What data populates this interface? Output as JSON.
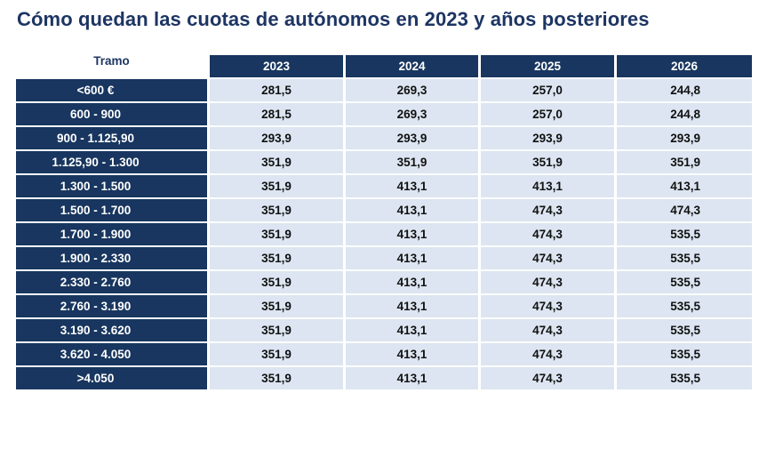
{
  "title": "Cómo quedan las cuotas de autónomos en 2023 y años posteriores",
  "table": {
    "corner_label": "Tramo",
    "years": [
      "2023",
      "2024",
      "2025",
      "2026"
    ],
    "rows": [
      {
        "tramo": "<600 €",
        "values": [
          "281,5",
          "269,3",
          "257,0",
          "244,8"
        ]
      },
      {
        "tramo": "600 - 900",
        "values": [
          "281,5",
          "269,3",
          "257,0",
          "244,8"
        ]
      },
      {
        "tramo": "900 - 1.125,90",
        "values": [
          "293,9",
          "293,9",
          "293,9",
          "293,9"
        ]
      },
      {
        "tramo": "1.125,90 - 1.300",
        "values": [
          "351,9",
          "351,9",
          "351,9",
          "351,9"
        ]
      },
      {
        "tramo": "1.300 - 1.500",
        "values": [
          "351,9",
          "413,1",
          "413,1",
          "413,1"
        ]
      },
      {
        "tramo": "1.500 - 1.700",
        "values": [
          "351,9",
          "413,1",
          "474,3",
          "474,3"
        ]
      },
      {
        "tramo": "1.700 - 1.900",
        "values": [
          "351,9",
          "413,1",
          "474,3",
          "535,5"
        ]
      },
      {
        "tramo": "1.900 - 2.330",
        "values": [
          "351,9",
          "413,1",
          "474,3",
          "535,5"
        ]
      },
      {
        "tramo": "2.330 - 2.760",
        "values": [
          "351,9",
          "413,1",
          "474,3",
          "535,5"
        ]
      },
      {
        "tramo": "2.760 - 3.190",
        "values": [
          "351,9",
          "413,1",
          "474,3",
          "535,5"
        ]
      },
      {
        "tramo": "3.190 - 3.620",
        "values": [
          "351,9",
          "413,1",
          "474,3",
          "535,5"
        ]
      },
      {
        "tramo": "3.620 - 4.050",
        "values": [
          "351,9",
          "413,1",
          "474,3",
          "535,5"
        ]
      },
      {
        "tramo": ">4.050",
        "values": [
          "351,9",
          "413,1",
          "474,3",
          "535,5"
        ]
      }
    ]
  },
  "colors": {
    "title": "#1d3563",
    "header_fill": "#18365f",
    "value_fill": "#dce5f1"
  }
}
